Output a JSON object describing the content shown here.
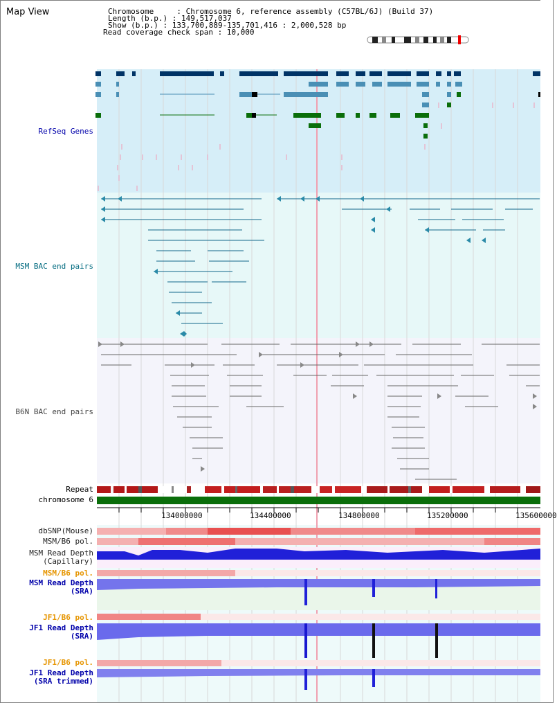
{
  "page": {
    "title": "Map View"
  },
  "header": {
    "chromosome": "Chromosome     : Chromosome 6, reference assembly (C57BL/6J) (Build 37)",
    "length": "Length (b.p.) : 149,517,037",
    "show": "Show (b.p.) : 133,700,889-135,701,416 : 2,000,528 bp",
    "coverage": "Read coverage check span : 10,000"
  },
  "tracks": {
    "refseq": "RefSeq Genes",
    "msm_bac": "MSM BAC end pairs",
    "b6n_bac": "B6N BAC end pairs",
    "repeat": "Repeat",
    "chromosome": "chromosome 6",
    "dbsnp": "dbSNP(Mouse)",
    "msm_pol": "MSM/B6 pol.",
    "msm_depth_cap": "MSM Read Depth\n(Capillary)",
    "msm_pol2": "MSM/B6 pol.",
    "msm_depth_sra": "MSM Read Depth\n(SRA)",
    "jf1_pol": "JF1/B6 pol.",
    "jf1_depth_sra": "JF1 Read Depth\n(SRA)",
    "jf1_pol2": "JF1/B6 pol.",
    "jf1_depth_trim": "JF1 Read Depth\n(SRA trimmed)"
  },
  "axis": {
    "ticks": [
      "134000000",
      "134400000",
      "134800000",
      "135200000",
      "135600000"
    ]
  },
  "colors": {
    "refseq": "#003366",
    "msm": "#006699",
    "b6n": "#555555",
    "orange": "#e69500",
    "blue_label": "#0000aa",
    "teal_label": "#006a7f"
  }
}
